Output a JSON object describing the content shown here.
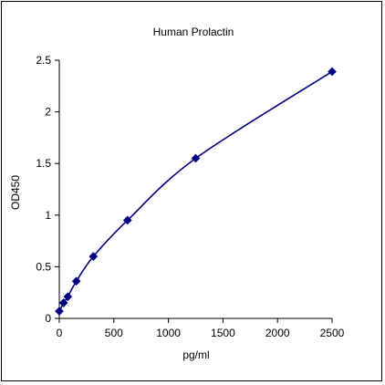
{
  "chart_data": {
    "type": "scatter",
    "title": "Human Prolactin",
    "xlabel": "pg/ml",
    "ylabel": "OD450",
    "xlim": [
      0,
      2500
    ],
    "ylim": [
      0,
      2.5
    ],
    "xticks": [
      "0",
      "500",
      "1000",
      "1500",
      "2000",
      "2500"
    ],
    "yticks": [
      "0",
      "0.5",
      "1",
      "1.5",
      "2",
      "2.5"
    ],
    "grid": false,
    "legend": "none",
    "fit_curve": true,
    "colors": {
      "series": "#000080",
      "axes": "#000000",
      "frame": "#000000"
    },
    "series": [
      {
        "x": [
          0,
          39,
          78,
          156,
          312,
          625,
          1250,
          2500
        ],
        "y": [
          0.07,
          0.15,
          0.21,
          0.36,
          0.6,
          0.95,
          1.55,
          2.39
        ]
      }
    ]
  }
}
